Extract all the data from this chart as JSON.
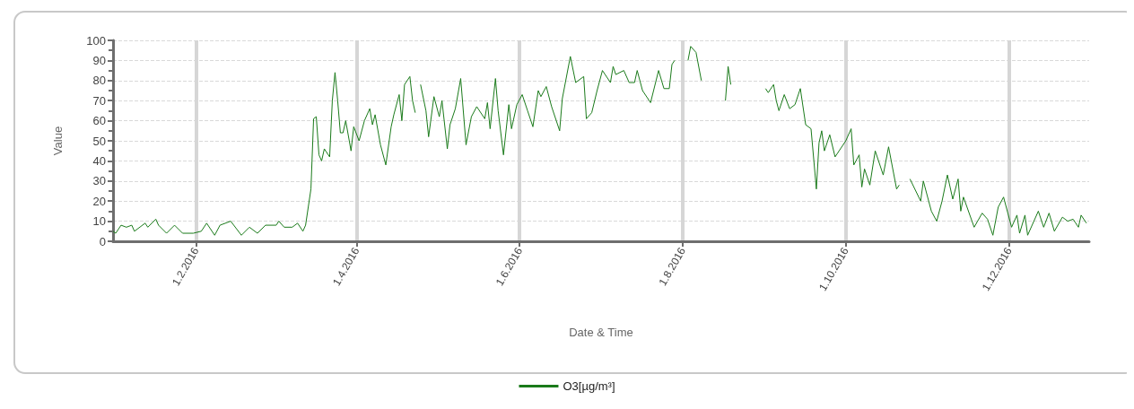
{
  "chart_data": {
    "type": "line",
    "xlabel": "Date & Time",
    "ylabel": "Value",
    "legend": "bottom",
    "grid": true,
    "marker": "none",
    "line_style": "solid",
    "xlim": [
      "2016-01-01",
      "2016-12-31"
    ],
    "xticks": [
      {
        "value": "2016-02-01",
        "label": "1.2.2016"
      },
      {
        "value": "2016-04-01",
        "label": "1.4.2016"
      },
      {
        "value": "2016-06-01",
        "label": "1.6.2016"
      },
      {
        "value": "2016-08-01",
        "label": "1.8.2016"
      },
      {
        "value": "2016-10-01",
        "label": "1.10.2016"
      },
      {
        "value": "2016-12-01",
        "label": "1.12.2016"
      }
    ],
    "ylim": [
      0,
      100
    ],
    "yticks": [
      0,
      10,
      20,
      30,
      40,
      50,
      60,
      70,
      80,
      90,
      100
    ],
    "x": [
      "2016-01-01",
      "2016-01-02",
      "2016-01-04",
      "2016-01-06",
      "2016-01-08",
      "2016-01-09",
      "2016-01-13",
      "2016-01-14",
      "2016-01-17",
      "2016-01-18",
      "2016-01-21",
      "2016-01-24",
      "2016-01-27",
      "2016-01-31",
      "2016-02-03",
      "2016-02-05",
      "2016-02-08",
      "2016-02-10",
      "2016-02-14",
      "2016-02-18",
      "2016-02-21",
      "2016-02-24",
      "2016-02-27",
      "2016-03-02",
      "2016-03-03",
      "2016-03-05",
      "2016-03-08",
      "2016-03-10",
      "2016-03-12",
      "2016-03-13",
      "2016-03-15",
      "2016-03-16",
      "2016-03-17",
      "2016-03-18",
      "2016-03-19",
      "2016-03-20",
      "2016-03-22",
      "2016-03-23",
      "2016-03-24",
      "2016-03-25",
      "2016-03-26",
      "2016-03-27",
      "2016-03-28",
      "2016-03-30",
      "2016-03-31",
      "2016-04-02",
      "2016-04-04",
      "2016-04-06",
      "2016-04-07",
      "2016-04-08",
      "2016-04-10",
      "2016-04-12",
      "2016-04-14",
      "2016-04-15",
      "2016-04-17",
      "2016-04-18",
      "2016-04-19",
      "2016-04-21",
      "2016-04-22",
      "2016-04-23",
      "2016-04-24",
      "2016-04-25",
      "2016-04-27",
      "2016-04-28",
      "2016-04-30",
      "2016-05-02",
      "2016-05-03",
      "2016-05-05",
      "2016-05-06",
      "2016-05-08",
      "2016-05-10",
      "2016-05-12",
      "2016-05-14",
      "2016-05-16",
      "2016-05-19",
      "2016-05-20",
      "2016-05-21",
      "2016-05-23",
      "2016-05-24",
      "2016-05-26",
      "2016-05-28",
      "2016-05-29",
      "2016-05-31",
      "2016-06-02",
      "2016-06-04",
      "2016-06-06",
      "2016-06-08",
      "2016-06-09",
      "2016-06-11",
      "2016-06-13",
      "2016-06-16",
      "2016-06-17",
      "2016-06-20",
      "2016-06-22",
      "2016-06-25",
      "2016-06-26",
      "2016-06-28",
      "2016-06-30",
      "2016-07-02",
      "2016-07-05",
      "2016-07-06",
      "2016-07-07",
      "2016-07-10",
      "2016-07-12",
      "2016-07-14",
      "2016-07-15",
      "2016-07-17",
      "2016-07-20",
      "2016-07-23",
      "2016-07-25",
      "2016-07-27",
      "2016-07-28",
      "2016-07-29",
      "2016-07-31",
      "2016-08-03",
      "2016-08-04",
      "2016-08-06",
      "2016-08-08",
      "2016-08-12",
      "2016-08-17",
      "2016-08-18",
      "2016-08-19",
      "2016-08-25",
      "2016-09-01",
      "2016-09-02",
      "2016-09-04",
      "2016-09-05",
      "2016-09-06",
      "2016-09-08",
      "2016-09-10",
      "2016-09-12",
      "2016-09-14",
      "2016-09-16",
      "2016-09-18",
      "2016-09-20",
      "2016-09-21",
      "2016-09-22",
      "2016-09-23",
      "2016-09-25",
      "2016-09-27",
      "2016-10-01",
      "2016-10-03",
      "2016-10-04",
      "2016-10-06",
      "2016-10-07",
      "2016-10-08",
      "2016-10-10",
      "2016-10-12",
      "2016-10-15",
      "2016-10-17",
      "2016-10-20",
      "2016-10-21",
      "2016-10-24",
      "2016-10-25",
      "2016-10-29",
      "2016-10-30",
      "2016-11-02",
      "2016-11-04",
      "2016-11-06",
      "2016-11-08",
      "2016-11-10",
      "2016-11-12",
      "2016-11-13",
      "2016-11-14",
      "2016-11-18",
      "2016-11-21",
      "2016-11-23",
      "2016-11-25",
      "2016-11-27",
      "2016-11-29",
      "2016-12-02",
      "2016-12-04",
      "2016-12-05",
      "2016-12-07",
      "2016-12-08",
      "2016-12-12",
      "2016-12-14",
      "2016-12-16",
      "2016-12-18",
      "2016-12-21",
      "2016-12-23",
      "2016-12-25",
      "2016-12-27",
      "2016-12-28",
      "2016-12-30"
    ],
    "series": [
      {
        "name": "O3[µg/m³]",
        "color": "#1a7a1a",
        "values": [
          5,
          4,
          8,
          7,
          8,
          5,
          9,
          7,
          11,
          8,
          4,
          8,
          4,
          4,
          5,
          9,
          3,
          8,
          10,
          3,
          7,
          4,
          8,
          8,
          10,
          7,
          7,
          9,
          5,
          8,
          26,
          61,
          62,
          43,
          40,
          46,
          42,
          70,
          84,
          70,
          54,
          54,
          60,
          45,
          57,
          50,
          60,
          66,
          58,
          63,
          48,
          38,
          57,
          63,
          73,
          60,
          78,
          82,
          70,
          64,
          null,
          78,
          65,
          52,
          72,
          62,
          70,
          46,
          58,
          66,
          81,
          48,
          62,
          67,
          61,
          69,
          56,
          81,
          65,
          43,
          68,
          56,
          68,
          73,
          65,
          57,
          75,
          72,
          77,
          67,
          55,
          71,
          92,
          79,
          82,
          61,
          64,
          75,
          85,
          79,
          87,
          83,
          85,
          79,
          79,
          85,
          75,
          69,
          85,
          76,
          76,
          88,
          90,
          null,
          90,
          97,
          94,
          80,
          null,
          70,
          87,
          78,
          null,
          76,
          74,
          78,
          70,
          65,
          73,
          66,
          68,
          76,
          58,
          56,
          26,
          49,
          55,
          45,
          53,
          42,
          50,
          56,
          38,
          43,
          27,
          36,
          28,
          45,
          33,
          47,
          26,
          28,
          null,
          31,
          20,
          30,
          15,
          10,
          20,
          33,
          21,
          31,
          15,
          22,
          7,
          14,
          11,
          3,
          17,
          22,
          7,
          13,
          4,
          13,
          3,
          15,
          7,
          14,
          5,
          12,
          10,
          11,
          7,
          13,
          9
        ]
      }
    ]
  }
}
